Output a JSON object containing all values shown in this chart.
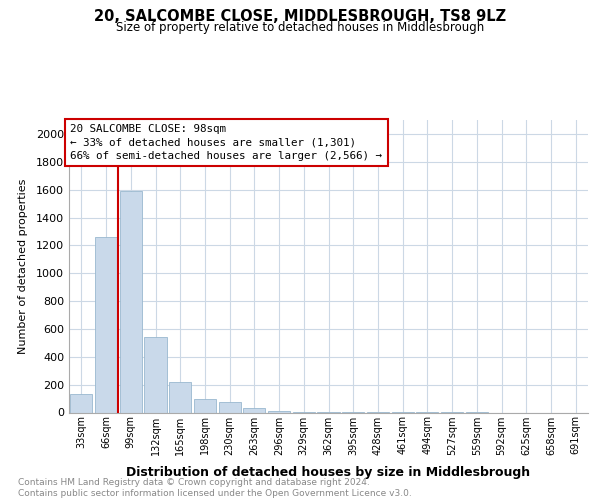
{
  "title_line1": "20, SALCOMBE CLOSE, MIDDLESBROUGH, TS8 9LZ",
  "title_line2": "Size of property relative to detached houses in Middlesbrough",
  "xlabel": "Distribution of detached houses by size in Middlesbrough",
  "ylabel": "Number of detached properties",
  "categories": [
    "33sqm",
    "66sqm",
    "99sqm",
    "132sqm",
    "165sqm",
    "198sqm",
    "230sqm",
    "263sqm",
    "296sqm",
    "329sqm",
    "362sqm",
    "395sqm",
    "428sqm",
    "461sqm",
    "494sqm",
    "527sqm",
    "559sqm",
    "592sqm",
    "625sqm",
    "658sqm",
    "691sqm"
  ],
  "values": [
    130,
    1260,
    1590,
    540,
    220,
    100,
    75,
    30,
    10,
    5,
    3,
    2,
    2,
    1,
    1,
    1,
    1,
    0,
    0,
    0,
    0
  ],
  "bar_color": "#c9d9ea",
  "bar_edge_color": "#9ab8cf",
  "annotation_text": "20 SALCOMBE CLOSE: 98sqm\n← 33% of detached houses are smaller (1,301)\n66% of semi-detached houses are larger (2,566) →",
  "vline_x": 1.5,
  "ylim": [
    0,
    2100
  ],
  "yticks": [
    0,
    200,
    400,
    600,
    800,
    1000,
    1200,
    1400,
    1600,
    1800,
    2000
  ],
  "footnote": "Contains HM Land Registry data © Crown copyright and database right 2024.\nContains public sector information licensed under the Open Government Licence v3.0.",
  "bg_color": "#ffffff",
  "grid_color": "#ccd8e5"
}
